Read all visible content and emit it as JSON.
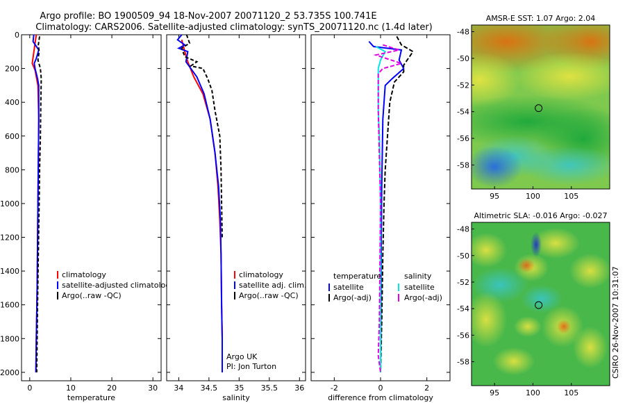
{
  "header": {
    "line1": "Argo profile: BO 1900509_94 18-Nov-2007 20071120_2 53.735S 100.741E",
    "line2": "Climatology: CARS2006. Satellite-adjusted climatology: synTS_20071120.nc (1.4d later)"
  },
  "side_stamp": "CSIRO 26-Nov-2007 10:31:07",
  "colors": {
    "climatology": "#ff0000",
    "satellite": "#0000ff",
    "argo": "#000000",
    "sal_sat": "#00e5e5",
    "sal_argo": "#e000e0"
  },
  "chart_data": [
    {
      "type": "line",
      "xlabel": "temperature",
      "xlim": [
        -2,
        32
      ],
      "ylim": [
        2050,
        0
      ],
      "xticks": [
        0,
        10,
        20,
        30
      ],
      "yticks": [
        0,
        200,
        400,
        600,
        800,
        1000,
        1200,
        1400,
        1600,
        1800,
        2000
      ],
      "legend": {
        "placement": "bottom-right",
        "entries": [
          "climatology",
          "satellite-adjusted climatology",
          "Argo(..raw -QC)"
        ]
      },
      "series": [
        {
          "name": "climatology",
          "color": "#ff0000",
          "dash": "",
          "points": [
            [
              1.6,
              0
            ],
            [
              1.3,
              50
            ],
            [
              0.9,
              120
            ],
            [
              0.6,
              170
            ],
            [
              1.3,
              210
            ],
            [
              2.0,
              300
            ],
            [
              2.2,
              500
            ],
            [
              2.0,
              1000
            ],
            [
              1.8,
              1500
            ],
            [
              1.6,
              1800
            ],
            [
              1.5,
              2000
            ]
          ]
        },
        {
          "name": "satellite-adjusted climatology",
          "color": "#0000ff",
          "dash": "",
          "points": [
            [
              1.0,
              0
            ],
            [
              0.8,
              40
            ],
            [
              2.2,
              90
            ],
            [
              1.6,
              140
            ],
            [
              1.1,
              170
            ],
            [
              1.3,
              200
            ],
            [
              1.9,
              260
            ],
            [
              2.2,
              300
            ],
            [
              2.2,
              500
            ],
            [
              2.0,
              1000
            ],
            [
              1.8,
              1500
            ],
            [
              1.6,
              1800
            ],
            [
              1.5,
              2000
            ]
          ]
        },
        {
          "name": "Argo(..raw -QC)",
          "color": "#000000",
          "dash": "5,3",
          "points": [
            [
              2.4,
              10
            ],
            [
              2.1,
              60
            ],
            [
              2.3,
              100
            ],
            [
              2.0,
              150
            ],
            [
              2.6,
              200
            ],
            [
              2.8,
              260
            ],
            [
              2.7,
              400
            ],
            [
              2.6,
              600
            ],
            [
              2.4,
              800
            ],
            [
              2.3,
              1000
            ],
            [
              2.1,
              1300
            ],
            [
              1.9,
              1600
            ],
            [
              1.7,
              2000
            ]
          ]
        }
      ]
    },
    {
      "type": "line",
      "xlabel": "salinity",
      "xlim": [
        33.8,
        36.1
      ],
      "ylim": [
        2050,
        0
      ],
      "xticks": [
        34,
        34.5,
        35,
        35.5,
        36
      ],
      "yticks": [
        0,
        200,
        400,
        600,
        800,
        1000,
        1200,
        1400,
        1600,
        1800,
        2000
      ],
      "legend": {
        "placement": "bottom-right",
        "entries": [
          "climatology",
          "satellite adj. clim.",
          "Argo(..raw -QC)"
        ]
      },
      "annotation": {
        "line1": "Argo UK",
        "line2": "PI: Jon Turton"
      },
      "series": [
        {
          "name": "climatology",
          "color": "#ff0000",
          "dash": "",
          "points": [
            [
              34.05,
              30
            ],
            [
              34.1,
              100
            ],
            [
              34.15,
              160
            ],
            [
              34.25,
              250
            ],
            [
              34.4,
              350
            ],
            [
              34.52,
              500
            ],
            [
              34.6,
              700
            ],
            [
              34.65,
              900
            ],
            [
              34.68,
              1100
            ],
            [
              34.7,
              1300
            ],
            [
              34.71,
              1600
            ],
            [
              34.72,
              1800
            ],
            [
              34.72,
              2000
            ]
          ]
        },
        {
          "name": "satellite adj. clim.",
          "color": "#0000ff",
          "dash": "",
          "points": [
            [
              34.05,
              0
            ],
            [
              33.98,
              30
            ],
            [
              34.1,
              60
            ],
            [
              34.0,
              80
            ],
            [
              34.15,
              100
            ],
            [
              34.12,
              160
            ],
            [
              34.2,
              200
            ],
            [
              34.3,
              250
            ],
            [
              34.42,
              350
            ],
            [
              34.52,
              500
            ],
            [
              34.6,
              700
            ],
            [
              34.66,
              900
            ],
            [
              34.69,
              1100
            ],
            [
              34.7,
              1300
            ],
            [
              34.71,
              1600
            ],
            [
              34.72,
              1800
            ],
            [
              34.72,
              2000
            ]
          ]
        },
        {
          "name": "Argo(..raw -QC)",
          "color": "#000000",
          "dash": "5,3",
          "points": [
            [
              34.13,
              0
            ],
            [
              34.18,
              50
            ],
            [
              34.05,
              80
            ],
            [
              34.1,
              130
            ],
            [
              34.3,
              160
            ],
            [
              34.2,
              185
            ],
            [
              34.4,
              200
            ],
            [
              34.48,
              260
            ],
            [
              34.55,
              330
            ],
            [
              34.6,
              450
            ],
            [
              34.68,
              600
            ],
            [
              34.7,
              800
            ],
            [
              34.71,
              1000
            ],
            [
              34.72,
              1200
            ]
          ]
        }
      ]
    },
    {
      "type": "line",
      "xlabel": "difference from climatology",
      "xlim": [
        -3,
        3
      ],
      "ylim": [
        2050,
        0
      ],
      "xticks": [
        -2,
        0,
        2
      ],
      "yticks": [
        0,
        200,
        400,
        600,
        800,
        1000,
        1200,
        1400,
        1600,
        1800,
        2000
      ],
      "legend": {
        "placement": "bottom",
        "temp_header": "temperature",
        "sal_header": "salinity",
        "temp_entries": [
          "satellite",
          "Argo(-adj)"
        ],
        "sal_entries": [
          "satellite",
          "Argo(-adj)"
        ]
      },
      "series": [
        {
          "name": "temperature satellite",
          "color": "#0000ff",
          "dash": "",
          "points": [
            [
              -0.5,
              40
            ],
            [
              -0.3,
              70
            ],
            [
              0.9,
              90
            ],
            [
              0.8,
              150
            ],
            [
              1.0,
              200
            ],
            [
              0.5,
              260
            ],
            [
              0.2,
              300
            ],
            [
              0.1,
              500
            ],
            [
              0.05,
              900
            ],
            [
              0.02,
              1400
            ],
            [
              0.0,
              2000
            ]
          ]
        },
        {
          "name": "temperature Argo(-adj)",
          "color": "#000000",
          "dash": "6,3",
          "points": [
            [
              0.7,
              10
            ],
            [
              0.9,
              60
            ],
            [
              1.4,
              100
            ],
            [
              1.0,
              180
            ],
            [
              1.0,
              220
            ],
            [
              0.6,
              280
            ],
            [
              0.4,
              400
            ],
            [
              0.3,
              600
            ],
            [
              0.2,
              800
            ],
            [
              0.15,
              1000
            ],
            [
              0.1,
              1300
            ],
            [
              0.05,
              1700
            ],
            [
              0.0,
              2000
            ]
          ]
        },
        {
          "name": "salinity satellite",
          "color": "#00e5e5",
          "dash": "",
          "points": [
            [
              -0.2,
              70
            ],
            [
              0.2,
              100
            ],
            [
              0.0,
              150
            ],
            [
              -0.1,
              200
            ],
            [
              -0.1,
              300
            ],
            [
              -0.1,
              450
            ],
            [
              -0.05,
              600
            ],
            [
              0.0,
              1000
            ],
            [
              0.0,
              1500
            ],
            [
              0.0,
              2000
            ]
          ]
        },
        {
          "name": "salinity Argo(-adj)",
          "color": "#e000e0",
          "dash": "6,3",
          "points": [
            [
              0.1,
              60
            ],
            [
              0.8,
              90
            ],
            [
              -0.2,
              120
            ],
            [
              0.9,
              170
            ],
            [
              0.1,
              200
            ],
            [
              -0.1,
              230
            ],
            [
              -0.1,
              450
            ],
            [
              0.0,
              1000
            ],
            [
              -0.05,
              1700
            ],
            [
              -0.1,
              1900
            ],
            [
              0.0,
              2000
            ]
          ]
        }
      ]
    },
    {
      "type": "heatmap",
      "title": "AMSR-E SST: 1.07 Argo: 2.04",
      "xlim": [
        92,
        110
      ],
      "ylim": [
        -59.8,
        -47.5
      ],
      "xticks": [
        95,
        100,
        105
      ],
      "yticks": [
        -48,
        -50,
        -52,
        -54,
        -56,
        -58
      ],
      "marker": {
        "lon": 100.741,
        "lat": -53.735
      }
    },
    {
      "type": "heatmap",
      "title": "Altimetric SLA: -0.016 Argo: -0.027",
      "xlim": [
        92,
        110
      ],
      "ylim": [
        -59.8,
        -47.5
      ],
      "xticks": [
        95,
        100,
        105
      ],
      "yticks": [
        -48,
        -50,
        -52,
        -54,
        -56,
        -58
      ],
      "marker": {
        "lon": 100.741,
        "lat": -53.735
      }
    }
  ]
}
